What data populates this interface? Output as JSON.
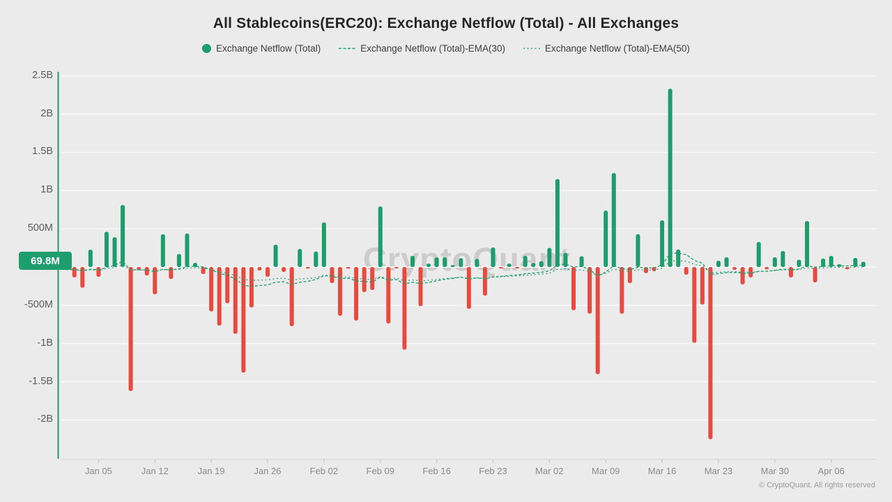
{
  "header": {
    "title": "All Stablecoins(ERC20): Exchange Netflow (Total) - All Exchanges"
  },
  "legend": [
    {
      "label": "Exchange Netflow (Total)",
      "marker": "circle"
    },
    {
      "label": "Exchange Netflow (Total)-EMA(30)",
      "marker": "dashed-line"
    },
    {
      "label": "Exchange Netflow (Total)-EMA(50)",
      "marker": "dashed-line-sparse"
    },
    {
      "note": "only these three entries are visible"
    }
  ],
  "badge": {
    "label": "69.8M"
  },
  "watermark": "CryptoQuant",
  "copyright": "© CryptoQuant. All rights reserved",
  "colors": {
    "positive": "#1d9d6e",
    "negative": "#e74a3f",
    "ema30": "#1d9d6e",
    "ema50": "#35a378",
    "axis": "#1d9d6e",
    "badge_bg": "#1e9e6e",
    "gridline": "#f6f6f6",
    "baseline": "#d8d8d8",
    "tick": "#c6c6c6",
    "background": "#ebebeb"
  },
  "chart_data": {
    "type": "bar",
    "title": "All Stablecoins(ERC20): Exchange Netflow (Total) - All Exchanges",
    "unit": "millions USD",
    "ylim": [
      -2500,
      2550
    ],
    "grid": true,
    "legend_position": "top-center",
    "y_ticks": [
      {
        "label": "2.5B",
        "value": 2500
      },
      {
        "label": "2B",
        "value": 2000
      },
      {
        "label": "1.5B",
        "value": 1500
      },
      {
        "label": "1B",
        "value": 1000
      },
      {
        "label": "500M",
        "value": 500
      },
      {
        "label": "-500M",
        "value": -500
      },
      {
        "label": "-1B",
        "value": -1000
      },
      {
        "label": "-1.5B",
        "value": -1500
      },
      {
        "label": "-2B",
        "value": -2000
      }
    ],
    "x_ticks": [
      {
        "label": "Jan 05",
        "day_index": 4
      },
      {
        "label": "Jan 12",
        "day_index": 11
      },
      {
        "label": "Jan 19",
        "day_index": 18
      },
      {
        "label": "Jan 26",
        "day_index": 25
      },
      {
        "label": "Feb 02",
        "day_index": 32
      },
      {
        "label": "Feb 09",
        "day_index": 39
      },
      {
        "label": "Feb 16",
        "day_index": 46
      },
      {
        "label": "Feb 23",
        "day_index": 53
      },
      {
        "label": "Mar 02",
        "day_index": 60
      },
      {
        "label": "Mar 09",
        "day_index": 67
      },
      {
        "label": "Mar 16",
        "day_index": 74
      },
      {
        "label": "Mar 23",
        "day_index": 81
      },
      {
        "label": "Mar 30",
        "day_index": 88
      },
      {
        "label": "Apr 06",
        "day_index": 95
      }
    ],
    "x": [
      "Jan 01",
      "Jan 02",
      "Jan 03",
      "Jan 04",
      "Jan 05",
      "Jan 06",
      "Jan 07",
      "Jan 08",
      "Jan 09",
      "Jan 10",
      "Jan 11",
      "Jan 12",
      "Jan 13",
      "Jan 14",
      "Jan 15",
      "Jan 16",
      "Jan 17",
      "Jan 18",
      "Jan 19",
      "Jan 20",
      "Jan 21",
      "Jan 22",
      "Jan 23",
      "Jan 24",
      "Jan 25",
      "Jan 26",
      "Jan 27",
      "Jan 28",
      "Jan 29",
      "Jan 30",
      "Jan 31",
      "Feb 01",
      "Feb 02",
      "Feb 03",
      "Feb 04",
      "Feb 05",
      "Feb 06",
      "Feb 07",
      "Feb 08",
      "Feb 09",
      "Feb 10",
      "Feb 11",
      "Feb 12",
      "Feb 13",
      "Feb 14",
      "Feb 15",
      "Feb 16",
      "Feb 17",
      "Feb 18",
      "Feb 19",
      "Feb 20",
      "Feb 21",
      "Feb 22",
      "Feb 23",
      "Feb 24",
      "Feb 25",
      "Feb 26",
      "Feb 27",
      "Feb 28",
      "Mar 01",
      "Mar 02",
      "Mar 03",
      "Mar 04",
      "Mar 05",
      "Mar 06",
      "Mar 07",
      "Mar 08",
      "Mar 09",
      "Mar 10",
      "Mar 11",
      "Mar 12",
      "Mar 13",
      "Mar 14",
      "Mar 15",
      "Mar 16",
      "Mar 17",
      "Mar 18",
      "Mar 19",
      "Mar 20",
      "Mar 21",
      "Mar 22",
      "Mar 23",
      "Mar 24",
      "Mar 25",
      "Mar 26",
      "Mar 27",
      "Mar 28",
      "Mar 29",
      "Mar 30",
      "Mar 31",
      "Apr 01",
      "Apr 02",
      "Apr 03",
      "Apr 04",
      "Apr 05",
      "Apr 06",
      "Apr 07",
      "Apr 08",
      "Apr 09",
      "Apr 10"
    ],
    "series": [
      {
        "name": "Exchange Netflow (Total)",
        "type": "bar",
        "values_millions": [
          65,
          -135,
          -270,
          227,
          -128,
          460,
          390,
          810,
          -1620,
          -35,
          -110,
          -355,
          427,
          -155,
          170,
          437,
          55,
          -91,
          -580,
          -764,
          -473,
          -873,
          -1380,
          -528,
          -45,
          -127,
          291,
          -64,
          -773,
          236,
          -20,
          203,
          582,
          -209,
          -637,
          -20,
          -700,
          -327,
          -300,
          791,
          -737,
          -15,
          -1080,
          146,
          -510,
          45,
          125,
          127,
          25,
          115,
          -546,
          106,
          -373,
          255,
          -15,
          45,
          -12,
          145,
          52,
          76,
          249,
          1150,
          185,
          -564,
          140,
          -610,
          -1400,
          737,
          1228,
          -610,
          -209,
          428,
          -80,
          -55,
          610,
          2330,
          228,
          -100,
          -990,
          -490,
          -2250,
          82,
          127,
          -36,
          -227,
          -136,
          327,
          -30,
          127,
          209,
          -136,
          95,
          600,
          -200,
          110,
          145,
          36,
          -30,
          118,
          69.8
        ]
      },
      {
        "name": "Exchange Netflow (Total)-EMA(30)",
        "type": "line",
        "derived": "EMA of bar series",
        "period": 30,
        "start_level_millions": -30
      },
      {
        "name": "Exchange Netflow (Total)-EMA(50)",
        "type": "line",
        "derived": "EMA of bar series",
        "period": 50,
        "start_level_millions": -40
      }
    ],
    "latest_value_label": "69.8M"
  }
}
